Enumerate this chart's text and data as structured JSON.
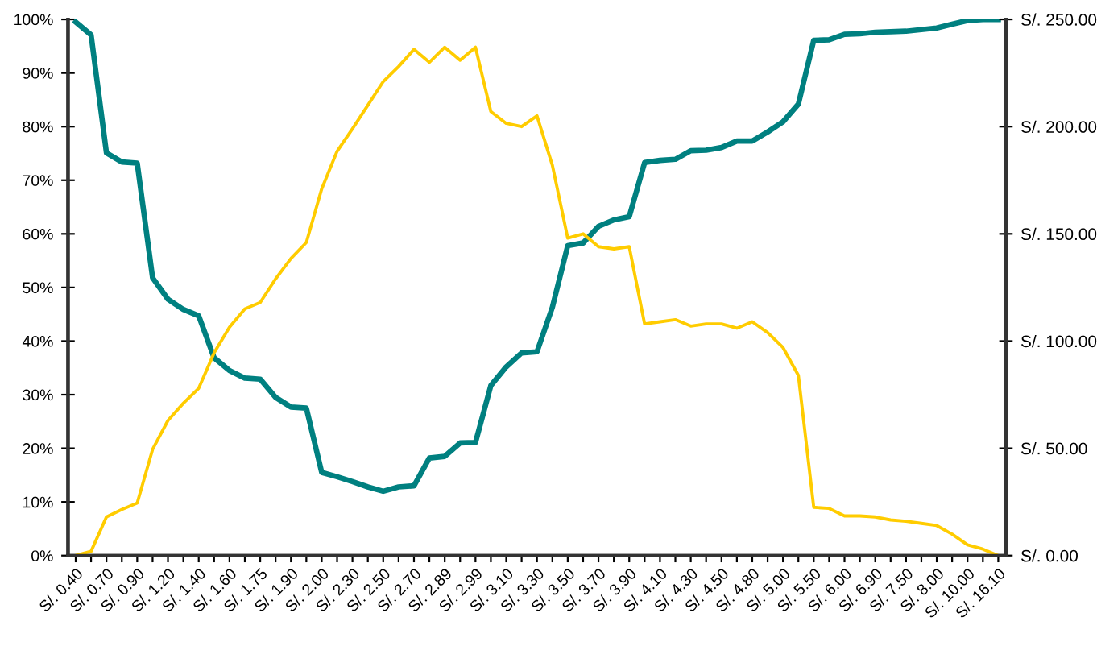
{
  "chart_data": {
    "type": "line",
    "categories": [
      "S/. 0.40",
      null,
      "S/. 0.70",
      null,
      "S/. 0.90",
      null,
      "S/. 1.20",
      null,
      "S/. 1.40",
      null,
      "S/. 1.60",
      null,
      "S/. 1.75",
      null,
      "S/. 1.90",
      null,
      "S/. 2.00",
      null,
      "S/. 2.30",
      null,
      "S/. 2.50",
      null,
      "S/. 2.70",
      null,
      "S/. 2.89",
      null,
      "S/. 2.99",
      null,
      "S/. 3.10",
      null,
      "S/. 3.30",
      null,
      "S/. 3.50",
      null,
      "S/. 3.70",
      null,
      "S/. 3.90",
      null,
      "S/. 4.10",
      null,
      "S/. 4.30",
      null,
      "S/. 4.50",
      null,
      "S/. 4.80",
      null,
      "S/. 5.00",
      null,
      "S/. 5.50",
      null,
      "S/. 6.00",
      null,
      "S/. 6.90",
      null,
      "S/. 7.50",
      null,
      "S/. 8.00",
      null,
      "S/. 10.00",
      null,
      "S/. 16.10"
    ],
    "series": [
      {
        "color": "#008080",
        "values": [
          99.5,
          97.1,
          75.1,
          73.4,
          73.2,
          51.8,
          47.8,
          45.9,
          44.7,
          36.9,
          34.5,
          33.1,
          32.9,
          29.5,
          27.7,
          27.5,
          15.5,
          14.7,
          13.8,
          12.8,
          12.0,
          12.8,
          13.0,
          18.2,
          18.5,
          21.0,
          21.1,
          31.7,
          35.2,
          37.8,
          38.0,
          46.3,
          57.8,
          58.3,
          61.4,
          62.6,
          63.2,
          73.3,
          73.7,
          73.9,
          75.5,
          75.6,
          76.1,
          77.3,
          77.3,
          79.0,
          80.9,
          84.2,
          96.1,
          96.2,
          97.2,
          97.3,
          97.6,
          97.7,
          97.8,
          98.1,
          98.4,
          99.1,
          99.8,
          100,
          100
        ]
      },
      {
        "color": "#ffcc00",
        "axis": "y2",
        "values": [
          0,
          2,
          18,
          21.5,
          24.5,
          49.5,
          63,
          71,
          78,
          94.5,
          106.5,
          115,
          118,
          129,
          138.5,
          146,
          171,
          188.5,
          199,
          210,
          221,
          228,
          236,
          230,
          237,
          231,
          237,
          207,
          201.5,
          200,
          205,
          182,
          148,
          150,
          144,
          143,
          144,
          108,
          109,
          110,
          107,
          108,
          108,
          106,
          109,
          104,
          97,
          84,
          22.5,
          22,
          18.5,
          18.5,
          18,
          16.6,
          16,
          15,
          14,
          10,
          5,
          3,
          0
        ]
      }
    ],
    "ylim": [
      0,
      100
    ],
    "yticks": [
      {
        "value": 0,
        "label": "0%"
      },
      {
        "value": 10,
        "label": "10%"
      },
      {
        "value": 20,
        "label": "20%"
      },
      {
        "value": 30,
        "label": "30%"
      },
      {
        "value": 40,
        "label": "40%"
      },
      {
        "value": 50,
        "label": "50%"
      },
      {
        "value": 60,
        "label": "60%"
      },
      {
        "value": 70,
        "label": "70%"
      },
      {
        "value": 80,
        "label": "80%"
      },
      {
        "value": 90,
        "label": "90%"
      },
      {
        "value": 100,
        "label": "100%"
      }
    ],
    "y2lim": [
      0,
      250
    ],
    "y2ticks": [
      {
        "value": 0,
        "label": "S/. 0.00"
      },
      {
        "value": 50,
        "label": "S/. 50.00"
      },
      {
        "value": 100,
        "label": "S/. 100.00"
      },
      {
        "value": 150,
        "label": "S/. 150.00"
      },
      {
        "value": 200,
        "label": "S/. 200.00"
      },
      {
        "value": 250,
        "label": "S/. 250.00"
      }
    ],
    "grid": false,
    "marker": "none",
    "line_style": "solid"
  }
}
